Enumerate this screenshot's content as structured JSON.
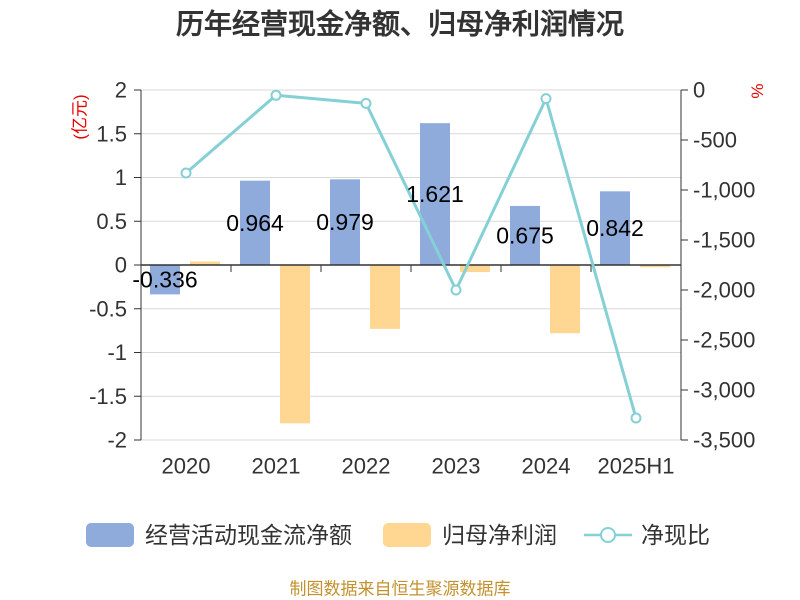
{
  "footer": "制图数据来自恒生聚源数据库",
  "chart_data": {
    "type": "bar",
    "title": "历年经营现金净额、归母净利润情况",
    "categories": [
      "2020",
      "2021",
      "2022",
      "2023",
      "2024",
      "2025H1"
    ],
    "y_axis_label": "(亿元)",
    "y2_axis_label": "%",
    "ylim": [
      -2,
      2
    ],
    "y2lim": [
      -3500,
      0
    ],
    "y_ticks": [
      2,
      1.5,
      1,
      0.5,
      0,
      -0.5,
      -1,
      -1.5,
      -2
    ],
    "y_tick_labels": [
      "2",
      "1.5",
      "1",
      "0.5",
      "0",
      "-0.5",
      "-1",
      "-1.5",
      "-2"
    ],
    "y2_ticks": [
      0,
      -500,
      -1000,
      -1500,
      -2000,
      -2500,
      -3000,
      -3500
    ],
    "y2_tick_labels": [
      "0",
      "-500",
      "-1,000",
      "-1,500",
      "-2,000",
      "-2,500",
      "-3,000",
      "-3,500"
    ],
    "grid": true,
    "legend_position": "bottom",
    "series": [
      {
        "name": "经营活动现金流净额",
        "type": "bar",
        "axis": "left",
        "color": "#8eabdc",
        "values": [
          -0.336,
          0.964,
          0.979,
          1.621,
          0.675,
          0.842
        ],
        "data_labels": [
          "-0.336",
          "0.964",
          "0.979",
          "1.621",
          "0.675",
          "0.842"
        ]
      },
      {
        "name": "归母净利润",
        "type": "bar",
        "axis": "left",
        "color": "#ffd793",
        "values": [
          0.04,
          -1.81,
          -0.73,
          -0.081,
          -0.78,
          -0.026
        ]
      },
      {
        "name": "净现比",
        "type": "line",
        "axis": "right",
        "color": "#84d0d5",
        "values": [
          -830,
          -53,
          -134,
          -2000,
          -86,
          -3280
        ]
      }
    ]
  }
}
